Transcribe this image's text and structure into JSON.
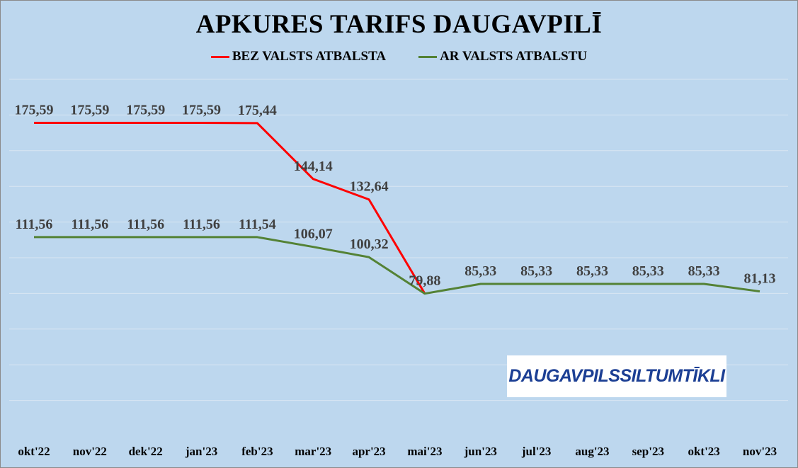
{
  "chart_data": {
    "type": "line",
    "title": "APKURES TARIFS DAUGAVPILĪ",
    "categories": [
      "okt'22",
      "nov'22",
      "dek'22",
      "jan'23",
      "feb'23",
      "mar'23",
      "apr'23",
      "mai'23",
      "jun'23",
      "jul'23",
      "aug'23",
      "sep'23",
      "okt'23",
      "nov'23"
    ],
    "series": [
      {
        "name": "BEZ VALSTS ATBALSTA",
        "color": "#ff0000",
        "values": [
          175.59,
          175.59,
          175.59,
          175.59,
          175.44,
          144.14,
          132.64,
          79.88,
          null,
          null,
          null,
          null,
          null,
          null
        ],
        "labels": [
          "175,59",
          "175,59",
          "175,59",
          "175,59",
          "175,44",
          "144,14",
          "132,64",
          "",
          "",
          "",
          "",
          "",
          "",
          ""
        ]
      },
      {
        "name": "AR VALSTS ATBALSTU",
        "color": "#548235",
        "values": [
          111.56,
          111.56,
          111.56,
          111.56,
          111.54,
          106.07,
          100.32,
          79.88,
          85.33,
          85.33,
          85.33,
          85.33,
          85.33,
          81.13
        ],
        "labels": [
          "111,56",
          "111,56",
          "111,56",
          "111,56",
          "111,54",
          "106,07",
          "100,32",
          "79,88",
          "85,33",
          "85,33",
          "85,33",
          "85,33",
          "85,33",
          "81,13"
        ]
      }
    ],
    "ylim": [
      0,
      200
    ],
    "grid": true,
    "legend_position": "top"
  },
  "logo": {
    "part1": "DAUGAVPILS",
    "part2": "SILTUMTĪKLI"
  }
}
